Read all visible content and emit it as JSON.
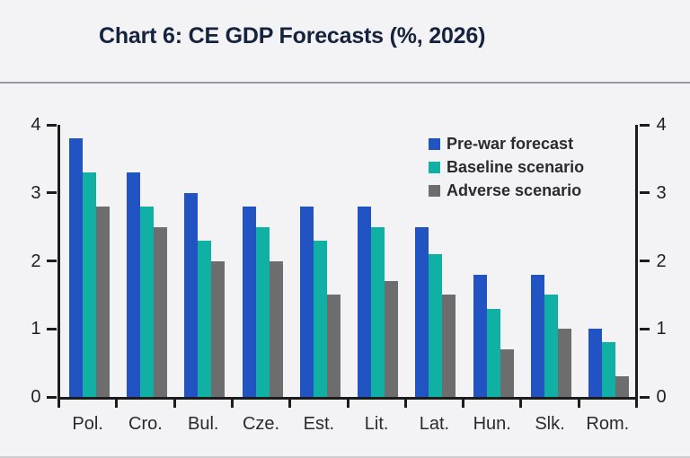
{
  "chart_data": {
    "type": "bar",
    "title": "Chart 6: CE GDP Forecasts (%, 2026)",
    "categories": [
      "Pol.",
      "Cro.",
      "Bul.",
      "Cze.",
      "Est.",
      "Lit.",
      "Lat.",
      "Hun.",
      "Slk.",
      "Rom."
    ],
    "series": [
      {
        "name": "Pre-war forecast",
        "color": "#2253c3",
        "values": [
          3.8,
          3.3,
          3.0,
          2.8,
          2.8,
          2.8,
          2.5,
          1.8,
          1.8,
          1.0
        ]
      },
      {
        "name": "Baseline scenario",
        "color": "#10b0a4",
        "values": [
          3.3,
          2.8,
          2.3,
          2.5,
          2.3,
          2.5,
          2.1,
          1.3,
          1.5,
          0.8
        ]
      },
      {
        "name": "Adverse scenario",
        "color": "#6d6d6d",
        "values": [
          2.8,
          2.5,
          2.0,
          2.0,
          1.5,
          1.7,
          1.5,
          0.7,
          1.0,
          0.3
        ]
      }
    ],
    "xlabel": "",
    "ylabel": "",
    "ylim": [
      0,
      4
    ],
    "yticks": [
      0,
      1,
      2,
      3,
      4
    ],
    "y_axis_sides": "both",
    "grid": false,
    "legend_position": "top-right-inside"
  },
  "colors": {
    "background": "#f3f2f4",
    "title_text": "#16233e",
    "axis": "#1c1c1c",
    "separator": "#9796a2"
  }
}
